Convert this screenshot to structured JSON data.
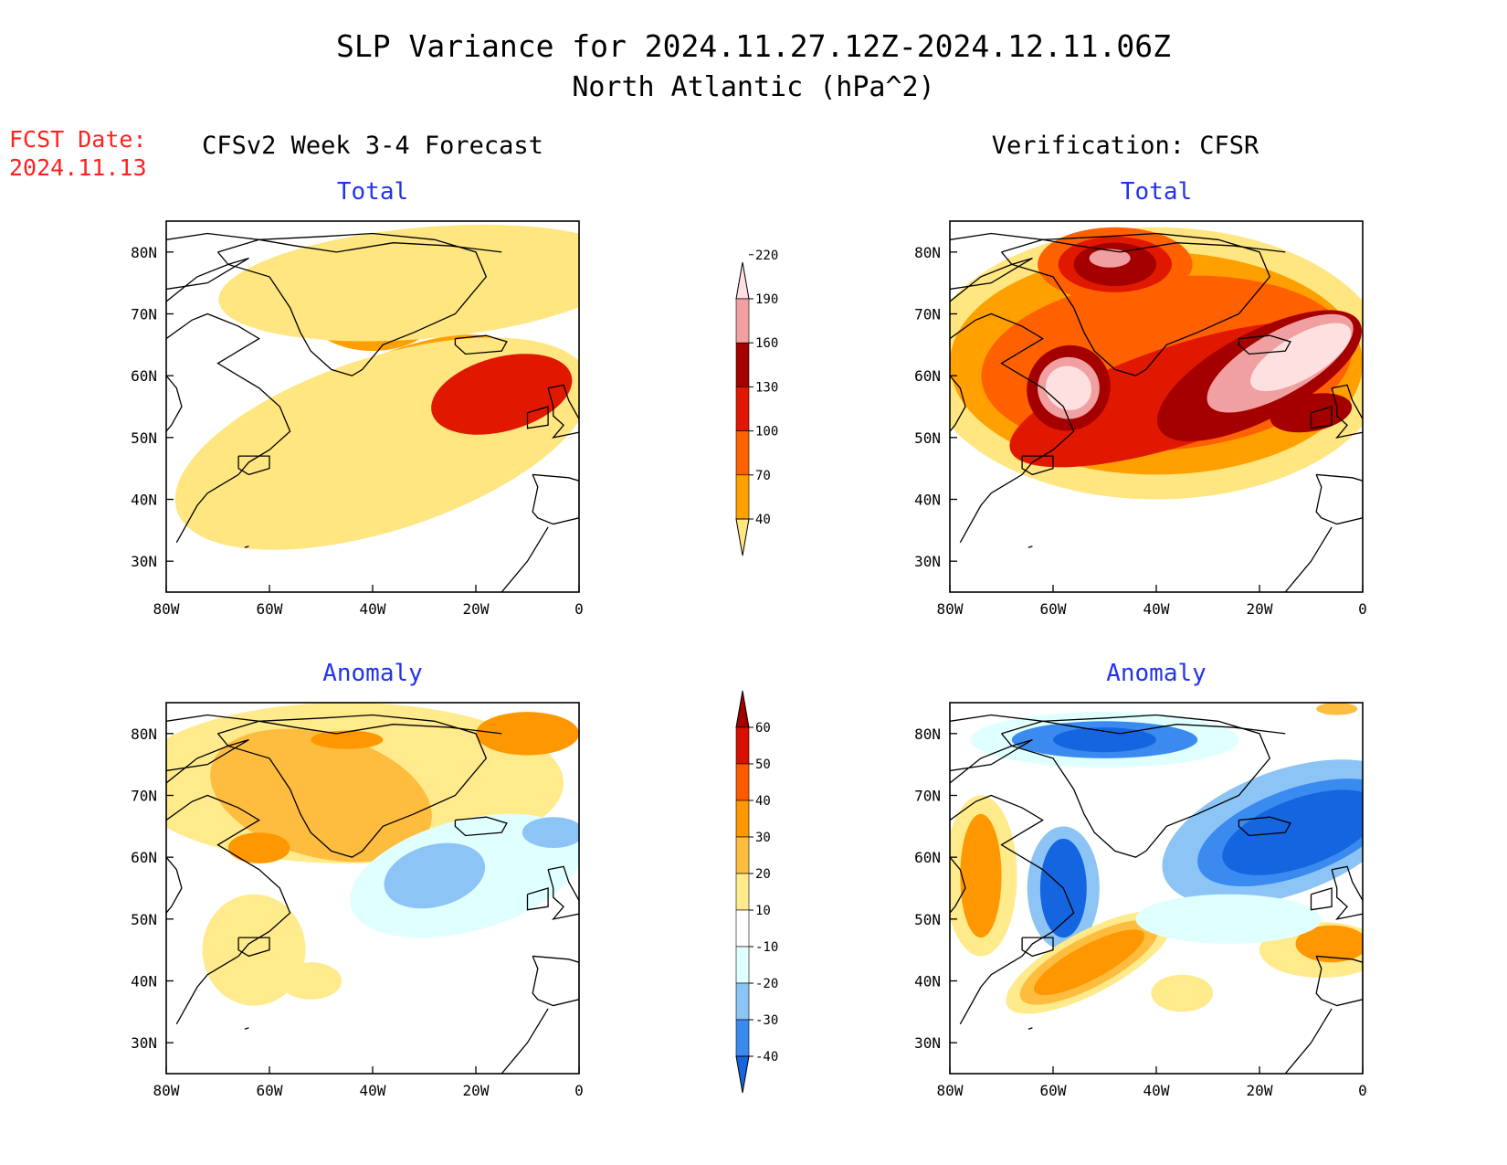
{
  "title_line1": "SLP Variance for 2024.11.27.12Z-2024.12.11.06Z",
  "title_line2": "North Atlantic (hPa^2)",
  "fcst_date_label": "FCST Date:",
  "fcst_date_value": "2024.11.13",
  "left_column_title": "CFSv2 Week 3-4 Forecast",
  "right_column_title": "Verification: CFSR",
  "colors": {
    "title": "#000000",
    "fcst": "#ff2020",
    "panel_title": "#2233ee"
  },
  "chart_data": [
    {
      "type": "heatmap",
      "id": "forecast-total",
      "title": "Total",
      "x_ticks": [
        "80W",
        "60W",
        "40W",
        "20W",
        "0"
      ],
      "y_ticks": [
        "80N",
        "70N",
        "60N",
        "50N",
        "40N",
        "30N"
      ],
      "xlim": [
        -80,
        0
      ],
      "ylim": [
        25,
        85
      ],
      "colorbar": "total",
      "blobs": [
        {
          "lon": -40,
          "lat": 53,
          "rx": 30,
          "ry": 9,
          "rot": 26,
          "level": 1
        },
        {
          "lon": -37,
          "lat": 54,
          "rx": 24,
          "ry": 7.5,
          "rot": 26,
          "level": 2
        },
        {
          "lon": -34,
          "lat": 55,
          "rx": 19,
          "ry": 5.5,
          "rot": 28,
          "level": 3
        },
        {
          "lon": -32,
          "lat": 56,
          "rx": 14,
          "ry": 4,
          "rot": 30,
          "level": 4
        },
        {
          "lon": -38,
          "lat": 49,
          "rx": 42,
          "ry": 14,
          "rot": 18,
          "level": 0
        },
        {
          "lon": -15,
          "lat": 57,
          "rx": 14,
          "ry": 6,
          "rot": 15,
          "level": 3
        },
        {
          "lon": -40,
          "lat": 72,
          "rx": 14,
          "ry": 8,
          "rot": 0,
          "level": 1
        },
        {
          "lon": -40,
          "lat": 72,
          "rx": 8,
          "ry": 5,
          "rot": 0,
          "level": 2
        },
        {
          "lon": -39,
          "lat": 71.5,
          "rx": 3.5,
          "ry": 2.2,
          "rot": 0,
          "level": 4
        },
        {
          "lon": -30,
          "lat": 75,
          "rx": 40,
          "ry": 9,
          "rot": 5,
          "level": 0
        }
      ]
    },
    {
      "type": "heatmap",
      "id": "verification-total",
      "title": "Total",
      "x_ticks": [
        "80W",
        "60W",
        "40W",
        "20W",
        "0"
      ],
      "y_ticks": [
        "80N",
        "70N",
        "60N",
        "50N",
        "40N",
        "30N"
      ],
      "xlim": [
        -80,
        0
      ],
      "ylim": [
        25,
        85
      ],
      "colorbar": "total",
      "blobs": [
        {
          "lon": -40,
          "lat": 62,
          "rx": 45,
          "ry": 22,
          "rot": 0,
          "level": 0
        },
        {
          "lon": -40,
          "lat": 62,
          "rx": 40,
          "ry": 18,
          "rot": 0,
          "level": 1
        },
        {
          "lon": -38,
          "lat": 62,
          "rx": 36,
          "ry": 14,
          "rot": 5,
          "level": 2
        },
        {
          "lon": -35,
          "lat": 57,
          "rx": 35,
          "ry": 8,
          "rot": 18,
          "level": 3
        },
        {
          "lon": -20,
          "lat": 60,
          "rx": 22,
          "ry": 7,
          "rot": 28,
          "level": 4
        },
        {
          "lon": -16,
          "lat": 62,
          "rx": 16,
          "ry": 5,
          "rot": 30,
          "level": 5
        },
        {
          "lon": -12,
          "lat": 63,
          "rx": 11,
          "ry": 3.5,
          "rot": 30,
          "level": 6
        },
        {
          "lon": -57,
          "lat": 58,
          "rx": 8,
          "ry": 7,
          "rot": -30,
          "level": 4
        },
        {
          "lon": -57,
          "lat": 58,
          "rx": 6,
          "ry": 5,
          "rot": -30,
          "level": 5
        },
        {
          "lon": -57,
          "lat": 58,
          "rx": 4.5,
          "ry": 3.5,
          "rot": -30,
          "level": 6
        },
        {
          "lon": -48,
          "lat": 78,
          "rx": 15,
          "ry": 6,
          "rot": 0,
          "level": 2
        },
        {
          "lon": -48,
          "lat": 78,
          "rx": 11,
          "ry": 4.5,
          "rot": 0,
          "level": 3
        },
        {
          "lon": -48,
          "lat": 78,
          "rx": 8,
          "ry": 3.5,
          "rot": 0,
          "level": 4
        },
        {
          "lon": -49,
          "lat": 79,
          "rx": 4,
          "ry": 1.5,
          "rot": 0,
          "level": 5
        },
        {
          "lon": -10,
          "lat": 54,
          "rx": 8,
          "ry": 3,
          "rot": 10,
          "level": 4
        }
      ]
    },
    {
      "type": "heatmap",
      "id": "forecast-anomaly",
      "title": "Anomaly",
      "x_ticks": [
        "80W",
        "60W",
        "40W",
        "20W",
        "0"
      ],
      "y_ticks": [
        "80N",
        "70N",
        "60N",
        "50N",
        "40N",
        "30N"
      ],
      "xlim": [
        -80,
        0
      ],
      "ylim": [
        25,
        85
      ],
      "colorbar": "anomaly",
      "blobs": [
        {
          "lon": -45,
          "lat": 72,
          "rx": 42,
          "ry": 13,
          "rot": 0,
          "level": 5
        },
        {
          "lon": -50,
          "lat": 70,
          "rx": 22,
          "ry": 10,
          "rot": -15,
          "level": 6
        },
        {
          "lon": -10,
          "lat": 80,
          "rx": 10,
          "ry": 3.5,
          "rot": 0,
          "level": 7
        },
        {
          "lon": -45,
          "lat": 79,
          "rx": 7,
          "ry": 1.5,
          "rot": 0,
          "level": 7
        },
        {
          "lon": -62,
          "lat": 61.5,
          "rx": 6,
          "ry": 2.5,
          "rot": 0,
          "level": 7
        },
        {
          "lon": -63,
          "lat": 45,
          "rx": 10,
          "ry": 9,
          "rot": 0,
          "level": 5
        },
        {
          "lon": -52,
          "lat": 40,
          "rx": 6,
          "ry": 3,
          "rot": 0,
          "level": 5
        },
        {
          "lon": -22,
          "lat": 57,
          "rx": 23,
          "ry": 9,
          "rot": 15,
          "level": 3
        },
        {
          "lon": -28,
          "lat": 57,
          "rx": 10,
          "ry": 5,
          "rot": 15,
          "level": 2
        },
        {
          "lon": -5,
          "lat": 64,
          "rx": 6,
          "ry": 2.5,
          "rot": 0,
          "level": 2
        }
      ]
    },
    {
      "type": "heatmap",
      "id": "verification-anomaly",
      "title": "Anomaly",
      "x_ticks": [
        "80W",
        "60W",
        "40W",
        "20W",
        "0"
      ],
      "y_ticks": [
        "80N",
        "70N",
        "60N",
        "50N",
        "40N",
        "30N"
      ],
      "xlim": [
        -80,
        0
      ],
      "ylim": [
        25,
        85
      ],
      "colorbar": "anomaly",
      "blobs": [
        {
          "lon": -50,
          "lat": 79,
          "rx": 26,
          "ry": 4.5,
          "rot": 0,
          "level": 3
        },
        {
          "lon": -50,
          "lat": 79,
          "rx": 18,
          "ry": 3,
          "rot": 0,
          "level": 1
        },
        {
          "lon": -50,
          "lat": 79,
          "rx": 10,
          "ry": 2,
          "rot": 0,
          "level": 0
        },
        {
          "lon": -15,
          "lat": 64,
          "rx": 25,
          "ry": 10,
          "rot": 20,
          "level": 2
        },
        {
          "lon": -13,
          "lat": 64,
          "rx": 20,
          "ry": 7,
          "rot": 20,
          "level": 1
        },
        {
          "lon": -12,
          "lat": 64,
          "rx": 16,
          "ry": 5.5,
          "rot": 20,
          "level": 0
        },
        {
          "lon": -58,
          "lat": 55,
          "rx": 7,
          "ry": 10,
          "rot": 0,
          "level": 2
        },
        {
          "lon": -58,
          "lat": 55,
          "rx": 4.5,
          "ry": 8,
          "rot": 0,
          "level": 0
        },
        {
          "lon": -74,
          "lat": 57,
          "rx": 7,
          "ry": 13,
          "rot": 0,
          "level": 5
        },
        {
          "lon": -74,
          "lat": 57,
          "rx": 4,
          "ry": 10,
          "rot": 0,
          "level": 7
        },
        {
          "lon": -53,
          "lat": 43,
          "rx": 18,
          "ry": 5,
          "rot": 28,
          "level": 5
        },
        {
          "lon": -53,
          "lat": 43,
          "rx": 15,
          "ry": 4,
          "rot": 28,
          "level": 6
        },
        {
          "lon": -53,
          "lat": 43,
          "rx": 12,
          "ry": 2.8,
          "rot": 28,
          "level": 7
        },
        {
          "lon": -8,
          "lat": 45,
          "rx": 12,
          "ry": 4.5,
          "rot": 0,
          "level": 5
        },
        {
          "lon": -6,
          "lat": 46,
          "rx": 7,
          "ry": 3,
          "rot": 0,
          "level": 7
        },
        {
          "lon": -35,
          "lat": 38,
          "rx": 6,
          "ry": 3,
          "rot": 0,
          "level": 5
        },
        {
          "lon": -26,
          "lat": 50,
          "rx": 18,
          "ry": 4,
          "rot": 0,
          "level": 3
        },
        {
          "lon": -5,
          "lat": 84,
          "rx": 4,
          "ry": 1,
          "rot": 0,
          "level": 6
        }
      ]
    }
  ],
  "colorbars": {
    "total": {
      "labels": [
        "40",
        "70",
        "100",
        "130",
        "160",
        "190",
        "220"
      ],
      "colors": [
        "#ffe680",
        "#ffa000",
        "#ff6000",
        "#e11800",
        "#a50000",
        "#f0a0a0",
        "#ffe0e0"
      ]
    },
    "anomaly": {
      "labels": [
        "-40",
        "-30",
        "-20",
        "-10",
        "10",
        "20",
        "30",
        "40",
        "50",
        "60"
      ],
      "colors": [
        "#1565e0",
        "#3a8af0",
        "#8cc4f5",
        "#e0ffff",
        "#ffffff",
        "#ffea8c",
        "#ffbd40",
        "#ff9800",
        "#ff5a00",
        "#d81000",
        "#a00000"
      ]
    }
  }
}
